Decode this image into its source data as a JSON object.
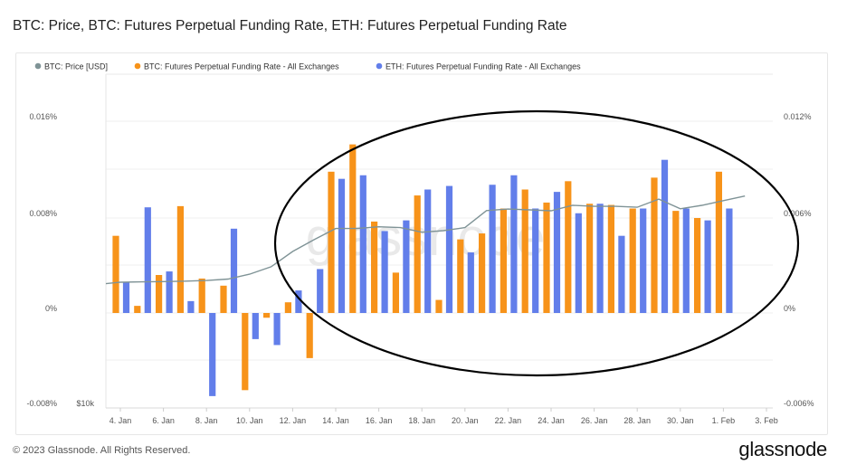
{
  "title": "BTC: Price, BTC: Futures Perpetual Funding Rate, ETH: Futures Perpetual Funding Rate",
  "footer": "© 2023 Glassnode. All Rights Reserved.",
  "logo": "glassnode",
  "watermark": "glassnode",
  "chart_data": {
    "type": "bar",
    "title": "BTC: Price, BTC: Futures Perpetual Funding Rate, ETH: Futures Perpetual Funding Rate",
    "grid": true,
    "legend_position": "top-left",
    "x_tick_labels": [
      "4. Jan",
      "6. Jan",
      "8. Jan",
      "10. Jan",
      "12. Jan",
      "14. Jan",
      "16. Jan",
      "18. Jan",
      "20. Jan",
      "22. Jan",
      "24. Jan",
      "26. Jan",
      "28. Jan",
      "30. Jan",
      "1. Feb",
      "3. Feb"
    ],
    "left_axis": {
      "ticks": [
        "0.016%",
        "0.008%",
        "0%",
        "-0.008%"
      ],
      "ylim": [
        -0.008,
        0.018
      ],
      "unit": "%"
    },
    "right_axis": {
      "ticks": [
        "0.012%",
        "0.006%",
        "0%",
        "-0.006%"
      ],
      "ylim": [
        -0.006,
        0.0135
      ],
      "unit": "%"
    },
    "price_axis": {
      "ticks": [
        "$10k"
      ],
      "scale": "log",
      "ylim": [
        10000,
        40000
      ]
    },
    "bar_dates": [
      "Jan 4",
      "Jan 5",
      "Jan 6",
      "Jan 7",
      "Jan 8",
      "Jan 9",
      "Jan 10",
      "Jan 11",
      "Jan 12",
      "Jan 13",
      "Jan 14",
      "Jan 15",
      "Jan 16",
      "Jan 17",
      "Jan 18",
      "Jan 19",
      "Jan 20",
      "Jan 21",
      "Jan 22",
      "Jan 23",
      "Jan 24",
      "Jan 25",
      "Jan 26",
      "Jan 27",
      "Jan 28",
      "Jan 29",
      "Jan 30",
      "Jan 31",
      "Feb 1"
    ],
    "price_dates": [
      "Jan 3",
      "Jan 4",
      "Jan 5",
      "Jan 6",
      "Jan 7",
      "Jan 8",
      "Jan 9",
      "Jan 10",
      "Jan 11",
      "Jan 12",
      "Jan 13",
      "Jan 14",
      "Jan 15",
      "Jan 16",
      "Jan 17",
      "Jan 18",
      "Jan 19",
      "Jan 20",
      "Jan 21",
      "Jan 22",
      "Jan 23",
      "Jan 24",
      "Jan 25",
      "Jan 26",
      "Jan 27",
      "Jan 28",
      "Jan 29",
      "Jan 30",
      "Jan 31",
      "Feb 1",
      "Feb 2"
    ],
    "series": [
      {
        "name": "BTC: Price [USD]",
        "type": "line",
        "axis": "price",
        "color": "#7f9396",
        "values": [
          16680,
          16830,
          16850,
          16870,
          16900,
          16950,
          17050,
          17400,
          17940,
          19110,
          20070,
          21020,
          21020,
          21170,
          21100,
          20700,
          20830,
          21100,
          22640,
          22780,
          22700,
          22620,
          23130,
          23040,
          23040,
          22950,
          23740,
          22810,
          23130,
          23590,
          24040
        ]
      },
      {
        "name": "BTC: Futures Perpetual Funding Rate - All Exchanges",
        "type": "bar",
        "axis": "left",
        "color": "#f7931a",
        "values": [
          0.0065,
          0.0006,
          0.0032,
          0.009,
          0.0029,
          0.0023,
          -0.0065,
          -0.0004,
          0.0009,
          -0.0038,
          0.0119,
          0.0142,
          0.0077,
          0.0034,
          0.0099,
          0.0011,
          0.0062,
          0.0067,
          0.0088,
          0.0104,
          0.0093,
          0.0111,
          0.0092,
          0.0091,
          0.0088,
          0.0114,
          0.0086,
          0.008,
          0.0119
        ]
      },
      {
        "name": "ETH: Futures Perpetual Funding Rate - All Exchanges",
        "type": "bar",
        "axis": "left",
        "color": "#627eea",
        "values": [
          0.0026,
          0.0089,
          0.0035,
          0.001,
          -0.007,
          0.0071,
          -0.0022,
          -0.0027,
          0.0019,
          0.0037,
          0.0113,
          0.0116,
          0.0069,
          0.0078,
          0.0104,
          0.0107,
          0.0051,
          0.0108,
          0.0116,
          0.0088,
          0.0102,
          0.0084,
          0.0092,
          0.0065,
          0.0088,
          0.0129,
          0.0088,
          0.0078,
          0.0088
        ]
      }
    ]
  }
}
